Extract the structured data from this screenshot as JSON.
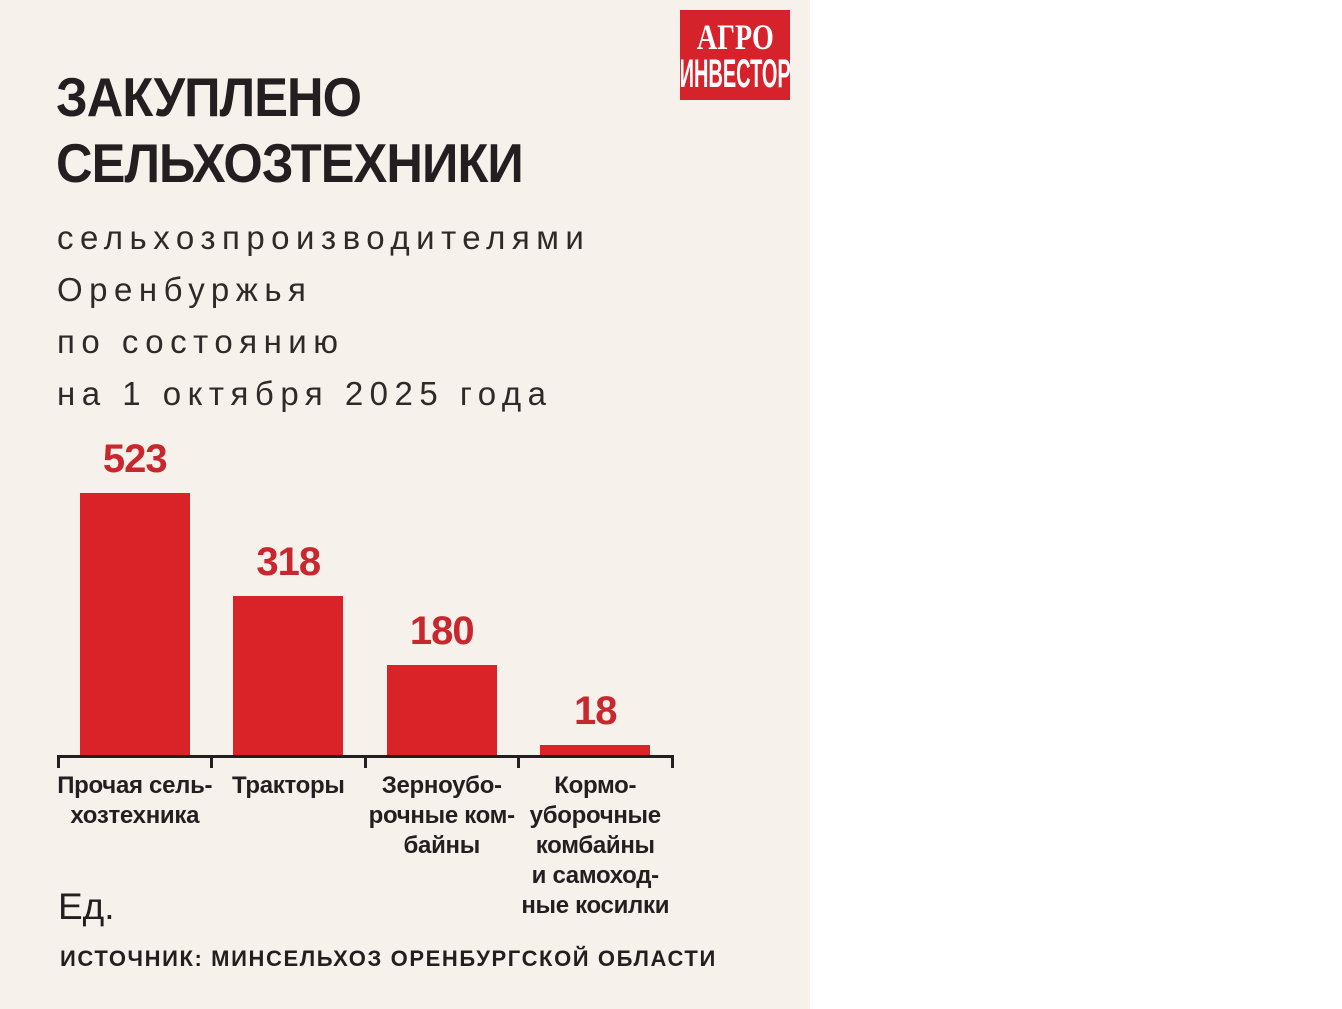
{
  "logo": {
    "line1": "АГРО",
    "line2": "ИНВЕСТОР"
  },
  "title": "ЗАКУПЛЕНО\nСЕЛЬХОЗТЕХНИКИ",
  "subtitle": "сельхозпроизводителями\nОренбуржья\nпо состоянию\nна 1 октября 2025 года",
  "units_label": "Ед.",
  "source": "ИСТОЧНИК: МИНСЕЛЬХОЗ ОРЕНБУРГСКОЙ ОБЛАСТИ",
  "colors": {
    "background_beige": "#f7f1ec",
    "background_white": "#ffffff",
    "bar_red": "#da2328",
    "value_red": "#c7272d",
    "logo_red": "#d6222a",
    "text_dark": "#231f20"
  },
  "chart_data": {
    "type": "bar",
    "title": "Закуплено сельхозтехники сельхозпроизводителями Оренбуржья по состоянию на 1 октября 2025 года",
    "categories": [
      "Прочая сель-\nхозтехника",
      "Тракторы",
      "Зерноубо-\nрочные ком-\nбайны",
      "Кормо-\nуборочные\nкомбайны\nи самоход-\nные косилки"
    ],
    "values": [
      523,
      318,
      180,
      18
    ],
    "xlabel": "",
    "ylabel": "Ед.",
    "ylim": [
      0,
      560
    ],
    "grid": false,
    "legend": "none",
    "bar_color": "#da2328",
    "data_labels": [
      523,
      318,
      180,
      18
    ]
  }
}
